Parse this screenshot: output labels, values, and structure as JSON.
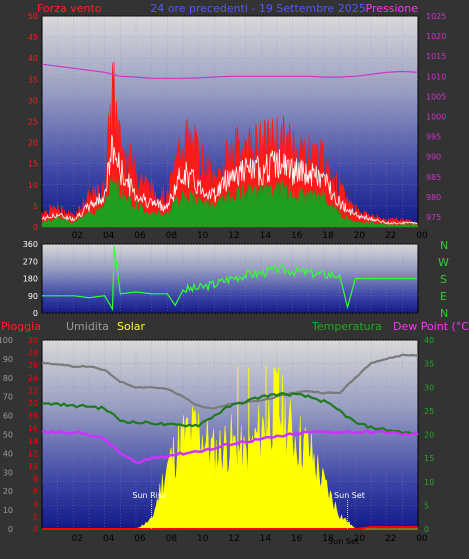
{
  "header": {
    "title": "24 ore precedenti - 19 Settembre 2025",
    "wind_label": "Forza vento",
    "pressure_label": "Pressione",
    "rain_label": "Pioggia",
    "humidity_label": "Umidita",
    "solar_label": "Solar",
    "temperature_label": "Temperatura",
    "dewpoint_label": "Dew Point (°C)",
    "compass": [
      "N",
      "W",
      "S",
      "E",
      "N"
    ],
    "sun_rise_label": "Sun Rise",
    "sun_set_label": "Sun Set",
    "sun_set_label2": "Sun Set"
  },
  "colors": {
    "background": "#333333",
    "plot_top": "#d7d7d7",
    "plot_bottom": "#131b8a",
    "wind": "#ff1a1a",
    "wind_avg": "#1f9e1f",
    "wind_white": "#ffffff",
    "pressure": "#cc33cc",
    "direction": "#33ff33",
    "humidity": "#7a7a7a",
    "temperature": "#1f7a1f",
    "dewpoint": "#cc33ff",
    "solar": "#ffff00",
    "rain": "#ff0000"
  },
  "chart_data": [
    {
      "type": "line",
      "name": "wind-pressure",
      "x_tick_labels": [
        "02",
        "04",
        "06",
        "08",
        "10",
        "12",
        "14",
        "16",
        "18",
        "20",
        "22",
        "00"
      ],
      "y_left_ticks": [
        0,
        5,
        10,
        15,
        20,
        25,
        30,
        35,
        40,
        45,
        50
      ],
      "y_right_ticks": [
        975,
        980,
        985,
        990,
        995,
        1000,
        1005,
        1010,
        1015,
        1020,
        1025
      ],
      "xlim": [
        0,
        24
      ],
      "ylim": [
        0,
        50
      ],
      "ylim_right": [
        972.5,
        1025
      ],
      "x": [
        0,
        1,
        2,
        3,
        4,
        4.5,
        5,
        6,
        7,
        8,
        9,
        10,
        11,
        12,
        13,
        14,
        15,
        16,
        17,
        18,
        19,
        20,
        21,
        22,
        23,
        24
      ],
      "series": [
        {
          "role": "gust",
          "values": [
            4,
            5,
            3,
            8,
            10,
            38,
            22,
            15,
            10,
            8,
            25,
            20,
            12,
            20,
            22,
            22,
            24,
            22,
            20,
            18,
            10,
            5,
            3,
            2,
            2,
            1
          ]
        },
        {
          "role": "max",
          "values": [
            2,
            3,
            2,
            5,
            8,
            20,
            14,
            8,
            6,
            5,
            14,
            10,
            8,
            13,
            14,
            14,
            16,
            14,
            13,
            12,
            6,
            3,
            2,
            1,
            1,
            1
          ]
        },
        {
          "role": "average",
          "values": [
            1,
            2,
            1,
            3,
            5,
            11,
            8,
            5,
            3,
            3,
            8,
            6,
            5,
            7,
            8,
            8,
            9,
            8,
            7,
            7,
            3,
            1,
            1,
            0.5,
            0.5,
            0.5
          ]
        },
        {
          "role": "pressure",
          "values": [
            1013,
            1012.5,
            1012,
            1011.5,
            1011,
            1010.5,
            1010,
            1009.8,
            1009.5,
            1009.5,
            1009.5,
            1009.6,
            1009.8,
            1010,
            1010,
            1010,
            1010,
            1010,
            1010,
            1009.8,
            1009.8,
            1010,
            1010.5,
            1011,
            1011.2,
            1011
          ]
        }
      ]
    },
    {
      "type": "line",
      "name": "wind-direction",
      "y_left_ticks": [
        0,
        90,
        180,
        270,
        360
      ],
      "ylim": [
        0,
        360
      ],
      "x": [
        0,
        1,
        2,
        3,
        4,
        4.5,
        4.6,
        5,
        6,
        7,
        8,
        8.5,
        9,
        10,
        11,
        12,
        13,
        14,
        15,
        16,
        17,
        18,
        19,
        19.5,
        20,
        21,
        22,
        23,
        24
      ],
      "values": [
        90,
        90,
        90,
        80,
        90,
        20,
        350,
        100,
        110,
        100,
        100,
        40,
        120,
        130,
        150,
        180,
        200,
        210,
        230,
        220,
        210,
        200,
        200,
        30,
        180,
        180,
        180,
        180,
        180
      ]
    },
    {
      "type": "line",
      "name": "temperature-humidity-solar",
      "y_left_ticks": [
        0,
        10,
        20,
        30,
        40,
        50,
        60,
        70,
        80,
        90,
        100
      ],
      "y_rain_ticks": [
        0,
        2,
        4,
        6,
        8,
        10,
        12,
        14,
        16,
        18,
        20,
        22,
        24,
        26,
        28,
        30
      ],
      "y_right_ticks": [
        0,
        5,
        10,
        15,
        20,
        25,
        30,
        35,
        40
      ],
      "ylim_right": [
        0,
        40
      ],
      "x": [
        0,
        1,
        2,
        3,
        4,
        5,
        6,
        7,
        8,
        9,
        10,
        11,
        12,
        13,
        14,
        15,
        16,
        17,
        18,
        19,
        20,
        21,
        22,
        23,
        24
      ],
      "series": [
        {
          "role": "humidity",
          "values": [
            88,
            87,
            86,
            86,
            84,
            78,
            75,
            75,
            74,
            70,
            65,
            64,
            66,
            67,
            68,
            70,
            72,
            73,
            72,
            72,
            80,
            88,
            90,
            92,
            92
          ]
        },
        {
          "role": "temperature",
          "values": [
            26.5,
            26.5,
            26,
            26,
            25.5,
            23,
            22.5,
            22.5,
            22,
            22,
            22,
            24,
            26,
            27,
            28,
            28.5,
            28.5,
            28,
            27,
            25,
            22.5,
            21.5,
            21,
            20.5,
            20
          ]
        },
        {
          "role": "dewpoint",
          "values": [
            20.5,
            20.5,
            20.5,
            20,
            19,
            16,
            14,
            15,
            15.5,
            16,
            16.5,
            17,
            18,
            18.5,
            19,
            19.5,
            20,
            20.5,
            20.5,
            20.5,
            20.5,
            20.5,
            20.5,
            20,
            20
          ]
        },
        {
          "role": "solar",
          "values": [
            0,
            0,
            0,
            0,
            0,
            0,
            0,
            5,
            35,
            50,
            55,
            42,
            48,
            40,
            55,
            70,
            52,
            45,
            25,
            8,
            0,
            0,
            0,
            0,
            0
          ]
        },
        {
          "role": "rain",
          "values": [
            0,
            0,
            0,
            0,
            0,
            0,
            0,
            0,
            0,
            0,
            0,
            0,
            0,
            0,
            0,
            0,
            0,
            0,
            0,
            0,
            0,
            1,
            1,
            1,
            1
          ]
        }
      ],
      "sun_rise_hour": 7,
      "sun_set_hour": 19.5
    }
  ]
}
